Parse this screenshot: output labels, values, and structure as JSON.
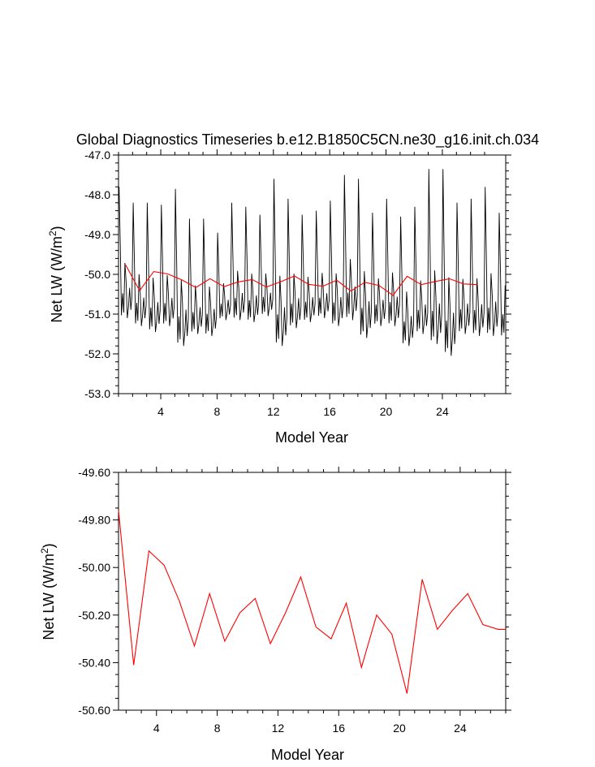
{
  "chart_data": [
    {
      "type": "line",
      "title": "Global Diagnostics Timeseries b.e12.B1850C5CN.ne30_g16.init.ch.034",
      "xlabel": "Model Year",
      "ylabel_main": "Net LW (W/m",
      "ylabel_sup": "2",
      "ylabel_tail": ")",
      "xlim": [
        1,
        28.5
      ],
      "ylim": [
        -53,
        -47
      ],
      "xticks": [
        4,
        8,
        12,
        16,
        20,
        24
      ],
      "xtick_labels": [
        "4",
        "8",
        "12",
        "16",
        "20",
        "24"
      ],
      "yticks": [
        -53,
        -52,
        -51,
        -50,
        -49,
        -48,
        -47
      ],
      "ytick_labels": [
        "-53.0",
        "-52.0",
        "-51.0",
        "-50.0",
        "-49.0",
        "-48.0",
        "-47.0"
      ],
      "grid": false,
      "colors": {
        "monthly": "#000000",
        "annual": "#ff0000"
      },
      "series": [
        {
          "kind": "monthly",
          "peak_max": [
            -47.8,
            -48.2,
            -48.2,
            -48.25,
            -47.85,
            -48.6,
            -48.6,
            -48.95,
            -48.2,
            -48.3,
            -48.5,
            -47.6,
            -48.1,
            -48.5,
            -48.4,
            -48.15,
            -47.5,
            -47.6,
            -48.45,
            -48.1,
            -48.55,
            -48.3,
            -47.35,
            -47.35,
            -48.2,
            -48.1,
            -47.8,
            -48.45
          ],
          "trough_min": [
            -51.1,
            -51.3,
            -51.45,
            -51.3,
            -51.8,
            -51.5,
            -51.55,
            -51.15,
            -51.15,
            -51.2,
            -51.05,
            -51.8,
            -51.35,
            -51.2,
            -51.1,
            -51.3,
            -51.15,
            -51.6,
            -51.3,
            -51.3,
            -51.8,
            -51.5,
            -51.75,
            -52.05,
            -51.5,
            -51.55,
            -51.55,
            -51.6
          ]
        },
        {
          "kind": "annual",
          "x": [
            1.5,
            2.5,
            3.5,
            4.5,
            5.5,
            6.5,
            7.5,
            8.5,
            9.5,
            10.5,
            11.5,
            12.5,
            13.5,
            14.5,
            15.5,
            16.5,
            17.5,
            18.5,
            19.5,
            20.5,
            21.5,
            22.5,
            23.5,
            24.5,
            25.5,
            26.5
          ],
          "y": [
            -49.76,
            -50.41,
            -49.93,
            -49.99,
            -50.14,
            -50.33,
            -50.11,
            -50.31,
            -50.19,
            -50.13,
            -50.32,
            -50.19,
            -50.04,
            -50.25,
            -50.3,
            -50.15,
            -50.42,
            -50.2,
            -50.28,
            -50.53,
            -50.05,
            -50.26,
            -50.18,
            -50.11,
            -50.24,
            -50.26
          ]
        }
      ]
    },
    {
      "type": "line",
      "xlabel": "Model Year",
      "ylabel_main": "Net LW (W/m",
      "ylabel_sup": "2",
      "ylabel_tail": ")",
      "xlim": [
        1.5,
        27
      ],
      "ylim": [
        -50.6,
        -49.6
      ],
      "xticks": [
        4,
        8,
        12,
        16,
        20,
        24
      ],
      "xtick_labels": [
        "4",
        "8",
        "12",
        "16",
        "20",
        "24"
      ],
      "yticks": [
        -50.6,
        -50.4,
        -50.2,
        -50.0,
        -49.8,
        -49.6
      ],
      "ytick_labels": [
        "-50.60",
        "-50.40",
        "-50.20",
        "-50.00",
        "-49.80",
        "-49.60"
      ],
      "grid": false,
      "colors": {
        "annual": "#ff0000"
      },
      "series": [
        {
          "kind": "annual",
          "x": [
            1.5,
            2.5,
            3.5,
            4.5,
            5.5,
            6.5,
            7.5,
            8.5,
            9.5,
            10.5,
            11.5,
            12.5,
            13.5,
            14.5,
            15.5,
            16.5,
            17.5,
            18.5,
            19.5,
            20.5,
            21.5,
            22.5,
            23.5,
            24.5,
            25.5,
            26.5,
            27
          ],
          "y": [
            -49.76,
            -50.41,
            -49.93,
            -49.99,
            -50.14,
            -50.33,
            -50.11,
            -50.31,
            -50.19,
            -50.13,
            -50.32,
            -50.19,
            -50.04,
            -50.25,
            -50.3,
            -50.15,
            -50.42,
            -50.2,
            -50.28,
            -50.53,
            -50.05,
            -50.26,
            -50.18,
            -50.11,
            -50.24,
            -50.26,
            -50.26
          ]
        }
      ]
    }
  ]
}
